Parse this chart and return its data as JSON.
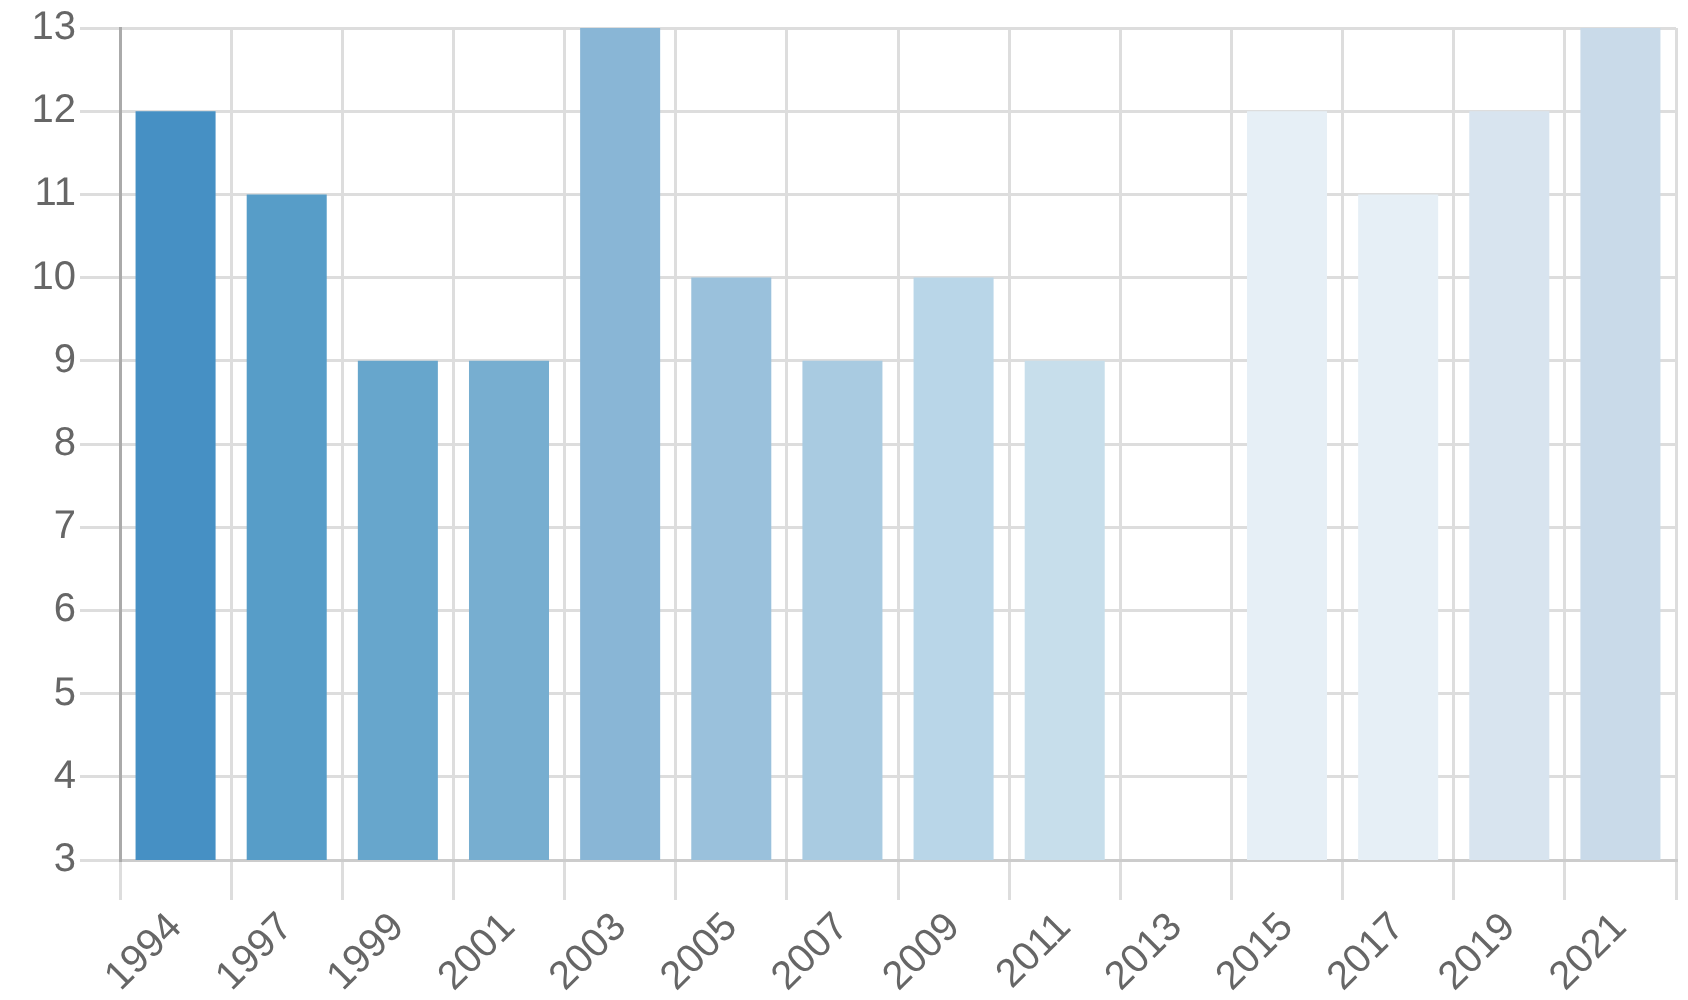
{
  "chart_data": {
    "type": "bar",
    "categories": [
      "1994",
      "1997",
      "1999",
      "2001",
      "2003",
      "2005",
      "2007",
      "2009",
      "2011",
      "2013",
      "2015",
      "2017",
      "2019",
      "2021"
    ],
    "values": [
      12,
      11,
      9,
      9,
      13,
      10,
      9,
      10,
      9,
      null,
      12,
      11,
      12,
      13
    ],
    "colors": [
      "#4690c4",
      "#579dc8",
      "#67a6cc",
      "#77aed0",
      "#89b6d6",
      "#9ac1dc",
      "#a9cbe1",
      "#b9d6e8",
      "#c7deeb",
      "#d5e6f0",
      "#e6eff6",
      "#e6eff6",
      "#d8e4ef",
      "#c9dae9"
    ],
    "ylim": [
      3,
      13
    ],
    "yticks": [
      3,
      4,
      5,
      6,
      7,
      8,
      9,
      10,
      11,
      12,
      13
    ],
    "grid": true
  }
}
